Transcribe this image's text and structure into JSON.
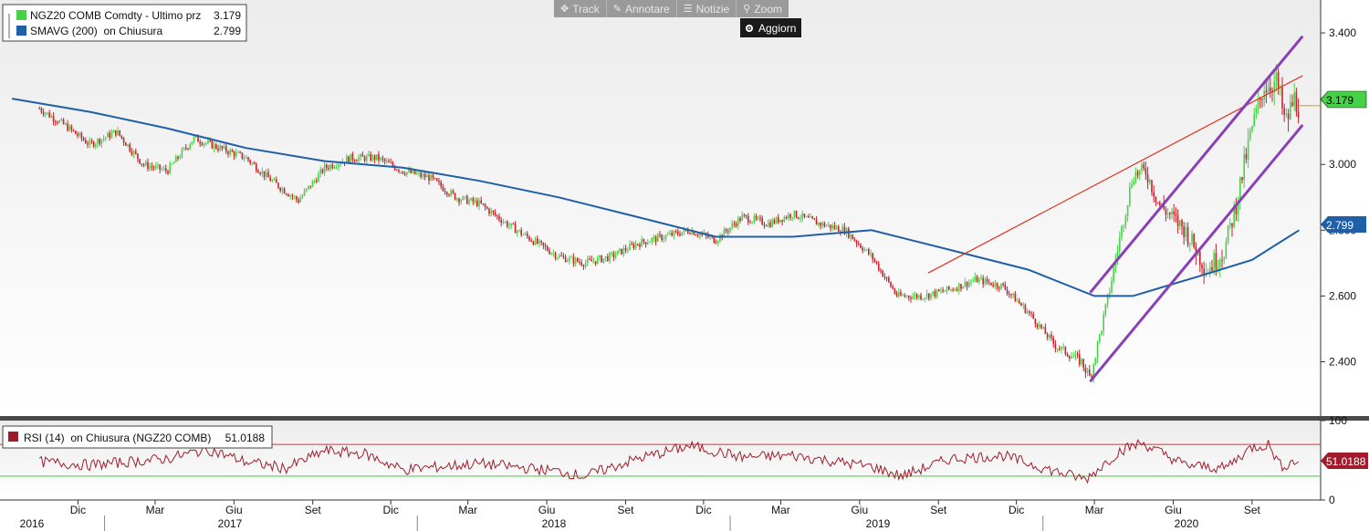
{
  "toolbar": {
    "buttons": [
      {
        "label": "Track",
        "icon": "crosshair-icon"
      },
      {
        "label": "Annotare",
        "icon": "pencil-icon"
      },
      {
        "label": "Notizie",
        "icon": "news-icon"
      },
      {
        "label": "Zoom",
        "icon": "magnifier-icon"
      }
    ],
    "refresh_label": "Aggiorn"
  },
  "colors": {
    "price_up": "#46d246",
    "price_down": "#c8202c",
    "sma": "#1f5fa8",
    "channel": "#8a3fb8",
    "trendline": "#e0301e",
    "rsi": "#a01c2c",
    "rsi_upper": "#e0303a",
    "rsi_lower": "#3ccc3c"
  },
  "chart_data": [
    {
      "type": "candlestick",
      "legend": [
        {
          "label": "NGZ20 COMB Comdty - Ultimo prz",
          "value": "3.179",
          "color": "#46d246"
        },
        {
          "label": "SMAVG (200)  on Chiusura",
          "value": "2.799",
          "color": "#1f5fa8"
        }
      ],
      "y_ticks": [
        "3.400",
        "3.200",
        "3.000",
        "2.800",
        "2.600",
        "2.400"
      ],
      "ylim": [
        2.235,
        3.5
      ],
      "last_price": {
        "label": "3.179",
        "value": 3.179
      },
      "last_sma": {
        "label": "2.799",
        "value": 2.799
      },
      "x_ticks_months": [
        "Dic",
        "Mar",
        "Giu",
        "Set",
        "Dic",
        "Mar",
        "Giu",
        "Set",
        "Dic",
        "Mar",
        "Giu",
        "Set",
        "Dic",
        "Mar",
        "Giu",
        "Set"
      ],
      "x_ticks_years": [
        "2016",
        "2017",
        "2018",
        "2019",
        "2020"
      ],
      "price_path": [
        [
          "2016-10-17",
          3.17
        ],
        [
          "2016-11-15",
          3.12
        ],
        [
          "2016-12-15",
          3.06
        ],
        [
          "2017-01-15",
          3.1
        ],
        [
          "2017-02-15",
          3.0
        ],
        [
          "2017-03-15",
          2.98
        ],
        [
          "2017-04-15",
          3.08
        ],
        [
          "2017-05-15",
          3.05
        ],
        [
          "2017-06-15",
          3.02
        ],
        [
          "2017-07-15",
          2.95
        ],
        [
          "2017-08-15",
          2.89
        ],
        [
          "2017-09-15",
          2.99
        ],
        [
          "2017-10-15",
          3.02
        ],
        [
          "2017-11-15",
          3.02
        ],
        [
          "2017-12-15",
          2.98
        ],
        [
          "2018-01-15",
          2.96
        ],
        [
          "2018-02-15",
          2.9
        ],
        [
          "2018-03-15",
          2.88
        ],
        [
          "2018-04-15",
          2.82
        ],
        [
          "2018-05-15",
          2.77
        ],
        [
          "2018-06-15",
          2.72
        ],
        [
          "2018-07-15",
          2.7
        ],
        [
          "2018-08-15",
          2.72
        ],
        [
          "2018-09-15",
          2.76
        ],
        [
          "2018-10-15",
          2.78
        ],
        [
          "2018-11-15",
          2.8
        ],
        [
          "2018-12-15",
          2.77
        ],
        [
          "2019-01-15",
          2.84
        ],
        [
          "2019-02-15",
          2.82
        ],
        [
          "2019-03-15",
          2.85
        ],
        [
          "2019-04-15",
          2.82
        ],
        [
          "2019-05-15",
          2.8
        ],
        [
          "2019-06-15",
          2.72
        ],
        [
          "2019-07-15",
          2.6
        ],
        [
          "2019-08-15",
          2.6
        ],
        [
          "2019-09-15",
          2.62
        ],
        [
          "2019-10-15",
          2.65
        ],
        [
          "2019-11-15",
          2.63
        ],
        [
          "2019-12-15",
          2.55
        ],
        [
          "2020-01-15",
          2.45
        ],
        [
          "2020-02-15",
          2.4
        ],
        [
          "2020-02-25",
          2.35
        ],
        [
          "2020-03-15",
          2.57
        ],
        [
          "2020-03-31",
          2.78
        ],
        [
          "2020-04-15",
          2.97
        ],
        [
          "2020-04-30",
          2.98
        ],
        [
          "2020-05-15",
          2.88
        ],
        [
          "2020-06-15",
          2.8
        ],
        [
          "2020-07-10",
          2.68
        ],
        [
          "2020-07-31",
          2.74
        ],
        [
          "2020-08-15",
          2.9
        ],
        [
          "2020-08-31",
          3.1
        ],
        [
          "2020-09-15",
          3.24
        ],
        [
          "2020-09-30",
          3.25
        ],
        [
          "2020-10-10",
          3.12
        ],
        [
          "2020-10-20",
          3.2
        ],
        [
          "2020-10-26",
          3.179
        ]
      ],
      "sma_path": [
        [
          "2016-09-15",
          3.2
        ],
        [
          "2016-12-15",
          3.16
        ],
        [
          "2017-03-15",
          3.11
        ],
        [
          "2017-06-15",
          3.05
        ],
        [
          "2017-09-15",
          3.01
        ],
        [
          "2017-12-15",
          2.99
        ],
        [
          "2018-03-15",
          2.95
        ],
        [
          "2018-06-15",
          2.9
        ],
        [
          "2018-09-15",
          2.84
        ],
        [
          "2018-12-15",
          2.78
        ],
        [
          "2019-03-15",
          2.78
        ],
        [
          "2019-06-15",
          2.8
        ],
        [
          "2019-09-15",
          2.74
        ],
        [
          "2019-12-15",
          2.68
        ],
        [
          "2020-03-01",
          2.6
        ],
        [
          "2020-04-15",
          2.6
        ],
        [
          "2020-07-01",
          2.66
        ],
        [
          "2020-09-01",
          2.71
        ],
        [
          "2020-10-26",
          2.8
        ]
      ],
      "trendline": [
        [
          "2019-08-20",
          2.67
        ],
        [
          "2020-10-30",
          3.27
        ]
      ],
      "channel_upper": [
        [
          "2020-02-25",
          2.61
        ],
        [
          "2020-10-30",
          3.39
        ]
      ],
      "channel_lower": [
        [
          "2020-02-25",
          2.34
        ],
        [
          "2020-10-30",
          3.12
        ]
      ]
    },
    {
      "type": "line",
      "legend": [
        {
          "label": "RSI (14)  on Chiusura (NGZ20 COMB)",
          "value": "51.0188",
          "color": "#a01c2c"
        }
      ],
      "y_ticks": [
        "100",
        "50",
        "0"
      ],
      "ylim": [
        0,
        100
      ],
      "upper_level": 70,
      "lower_level": 30,
      "last_value": {
        "label": "51.0188",
        "value": 51.0188
      },
      "rsi_path": [
        [
          "2016-10-17",
          48
        ],
        [
          "2016-12-15",
          44
        ],
        [
          "2017-03-15",
          52
        ],
        [
          "2017-05-01",
          64
        ],
        [
          "2017-06-15",
          48
        ],
        [
          "2017-08-01",
          40
        ],
        [
          "2017-09-15",
          62
        ],
        [
          "2017-11-01",
          58
        ],
        [
          "2017-12-15",
          38
        ],
        [
          "2018-03-15",
          46
        ],
        [
          "2018-06-15",
          36
        ],
        [
          "2018-07-15",
          30
        ],
        [
          "2018-09-15",
          52
        ],
        [
          "2018-11-15",
          68
        ],
        [
          "2019-01-15",
          54
        ],
        [
          "2019-03-15",
          56
        ],
        [
          "2019-06-15",
          42
        ],
        [
          "2019-07-20",
          30
        ],
        [
          "2019-09-15",
          52
        ],
        [
          "2019-11-15",
          56
        ],
        [
          "2020-01-15",
          36
        ],
        [
          "2020-02-20",
          26
        ],
        [
          "2020-03-31",
          62
        ],
        [
          "2020-04-25",
          72
        ],
        [
          "2020-06-15",
          44
        ],
        [
          "2020-07-31",
          40
        ],
        [
          "2020-08-31",
          66
        ],
        [
          "2020-09-20",
          70
        ],
        [
          "2020-10-05",
          42
        ],
        [
          "2020-10-26",
          51
        ]
      ]
    }
  ]
}
